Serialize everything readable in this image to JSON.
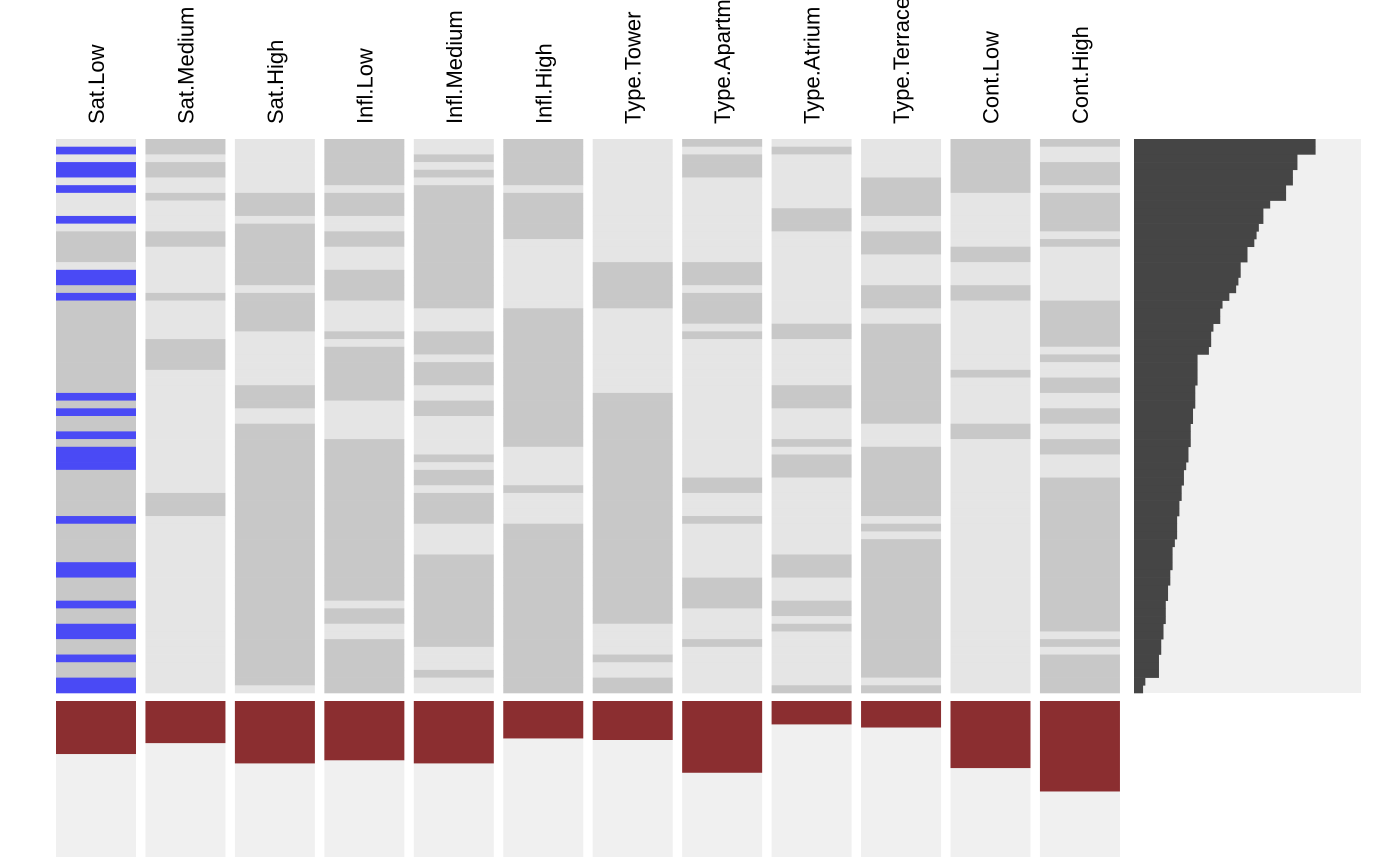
{
  "colors": {
    "background": "#ffffff",
    "tile_light": "#e5e5e5",
    "tile_mid": "#c8c8c8",
    "highlight": "#4a4af5",
    "proportion_bar": "#8b2e30",
    "proportion_track": "#f0f0f0",
    "profile_fill": "#454545",
    "profile_track": "#f0f0f0"
  },
  "chart_data": {
    "type": "heatmap",
    "title": "",
    "legend": "none",
    "grid": false,
    "columns": [
      "Sat.Low",
      "Sat.Medium",
      "Sat.High",
      "Infl.Low",
      "Infl.Medium",
      "Infl.High",
      "Type.Tower",
      "Type.Apartment",
      "Type.Atrium",
      "Type.Terrace",
      "Cont.Low",
      "Cont.High"
    ],
    "row_count": 72,
    "highlight_column": "Sat.Low",
    "highlight_rows": [
      1,
      3,
      4,
      6,
      10,
      17,
      18,
      20,
      33,
      35,
      38,
      40,
      41,
      42,
      49,
      55,
      56,
      60,
      63,
      64,
      67,
      70,
      71
    ],
    "matrix": [
      "010101010011",
      "010101001010",
      "000111010010",
      "010101010011",
      "010111010011",
      "000101000111",
      "000010000110",
      "011111000101",
      "001111000101",
      "001111001101",
      "000011001001",
      "001011001001",
      "111111000100",
      "111110000101",
      "101010000110",
      "101010000010",
      "001010110000",
      "001110110000",
      "001110110000",
      "100110100110",
      "111110110110",
      "101010110101",
      "101001010001",
      "101001010001",
      "101001001101",
      "100111011101",
      "110011000101",
      "110111000100",
      "110101000101",
      "110111000100",
      "100111000110",
      "100111000101",
      "101101001101",
      "101101101100",
      "101011101100",
      "100011100101",
      "100001100101",
      "101001100010",
      "101001100010",
      "101101101001",
      "101100100101",
      "101110101100",
      "101100101100",
      "101110101100",
      "101110110101",
      "101101110101",
      "111110100101",
      "111110100101",
      "111110100101",
      "101110110001",
      "101101100101",
      "101101100001",
      "101101100101",
      "101101100101",
      "101111101101",
      "101111101101",
      "101111101101",
      "101111110101",
      "101111110101",
      "101111110101",
      "101011111101",
      "101111101101",
      "101111100101",
      "101011001101",
      "101011000100",
      "101111010101",
      "101101000100",
      "101101100101",
      "101101000101",
      "101111000101",
      "101101100001",
      "100101101101"
    ],
    "proportions": [
      0.34,
      0.27,
      0.4,
      0.38,
      0.4,
      0.24,
      0.25,
      0.46,
      0.15,
      0.17,
      0.43,
      0.58
    ],
    "profile": [
      0.8,
      0.8,
      0.72,
      0.72,
      0.7,
      0.7,
      0.67,
      0.67,
      0.6,
      0.57,
      0.57,
      0.55,
      0.54,
      0.53,
      0.5,
      0.5,
      0.47,
      0.47,
      0.46,
      0.45,
      0.42,
      0.39,
      0.38,
      0.38,
      0.35,
      0.34,
      0.34,
      0.33,
      0.28,
      0.28,
      0.28,
      0.28,
      0.27,
      0.27,
      0.27,
      0.26,
      0.26,
      0.25,
      0.25,
      0.25,
      0.24,
      0.24,
      0.23,
      0.22,
      0.22,
      0.21,
      0.21,
      0.2,
      0.2,
      0.19,
      0.19,
      0.19,
      0.18,
      0.17,
      0.17,
      0.17,
      0.16,
      0.16,
      0.15,
      0.15,
      0.14,
      0.14,
      0.14,
      0.13,
      0.13,
      0.12,
      0.12,
      0.11,
      0.11,
      0.11,
      0.05,
      0.04
    ]
  }
}
